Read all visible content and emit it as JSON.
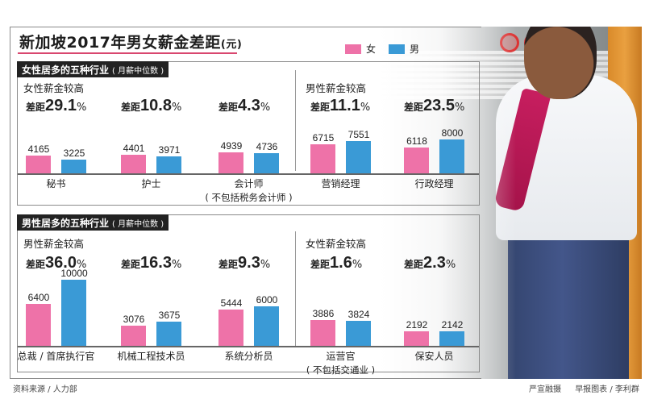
{
  "title": "新加坡2017年男女薪金差距",
  "title_unit": "(元)",
  "legend": [
    {
      "label": "女",
      "color": "#ee72a8"
    },
    {
      "label": "男",
      "color": "#3a9ad6"
    }
  ],
  "sections": [
    {
      "header": "女性居多的五种行业",
      "header_sub": "( 月薪中位数 )",
      "groups": [
        {
          "note": "女性薪金较高"
        },
        {
          "note": "男性薪金较高"
        }
      ],
      "items": [
        {
          "category": "秘书",
          "category_note": "",
          "gap_label": "差距",
          "gap": "29.1",
          "female": 4165,
          "male": 3225
        },
        {
          "category": "护士",
          "category_note": "",
          "gap_label": "差距",
          "gap": "10.8",
          "female": 4401,
          "male": 3971
        },
        {
          "category": "会计师",
          "category_note": "( 不包括税务会计师 )",
          "gap_label": "差距",
          "gap": "4.3",
          "female": 4939,
          "male": 4736
        },
        {
          "category": "营销经理",
          "category_note": "",
          "gap_label": "差距",
          "gap": "11.1",
          "female": 6715,
          "male": 7551
        },
        {
          "category": "行政经理",
          "category_note": "",
          "gap_label": "差距",
          "gap": "23.5",
          "female": 6118,
          "male": 8000
        }
      ]
    },
    {
      "header": "男性居多的五种行业",
      "header_sub": "( 月薪中位数 )",
      "groups": [
        {
          "note": "男性薪金较高"
        },
        {
          "note": "女性薪金较高"
        }
      ],
      "items": [
        {
          "category": "总裁 / 首席执行官",
          "category_note": "",
          "gap_label": "差距",
          "gap": "36.0",
          "female": 6400,
          "male": 10000
        },
        {
          "category": "机械工程技术员",
          "category_note": "",
          "gap_label": "差距",
          "gap": "16.3",
          "female": 3076,
          "male": 3675
        },
        {
          "category": "系统分析员",
          "category_note": "",
          "gap_label": "差距",
          "gap": "9.3",
          "female": 5444,
          "male": 6000
        },
        {
          "category": "运营官",
          "category_note": "( 不包括交通业 )",
          "gap_label": "差距",
          "gap": "1.6",
          "female": 3886,
          "male": 3824
        },
        {
          "category": "保安人员",
          "category_note": "",
          "gap_label": "差距",
          "gap": "2.3",
          "female": 2192,
          "male": 2142
        }
      ]
    }
  ],
  "percent_sign": "%",
  "footer": {
    "source": "资料来源 / 人力部",
    "photo_credit": "严宣融摄",
    "graphic_credit": "早报图表 / 李利群"
  },
  "chart_data": [
    {
      "type": "bar",
      "title": "新加坡2017年男女薪金差距(元) — 女性居多的五种行业(月薪中位数)",
      "categories": [
        "秘书",
        "护士",
        "会计师(不包括税务会计师)",
        "营销经理",
        "行政经理"
      ],
      "series": [
        {
          "name": "女",
          "values": [
            4165,
            4401,
            4939,
            6715,
            6118
          ]
        },
        {
          "name": "男",
          "values": [
            3225,
            3971,
            4736,
            7551,
            8000
          ]
        }
      ],
      "annotations": [
        "差距29.1%",
        "差距10.8%",
        "差距4.3%",
        "差距11.1%",
        "差距23.5%"
      ],
      "groups": [
        {
          "label": "女性薪金较高",
          "categories": [
            "秘书",
            "护士",
            "会计师"
          ]
        },
        {
          "label": "男性薪金较高",
          "categories": [
            "营销经理",
            "行政经理"
          ]
        }
      ],
      "xlabel": "",
      "ylabel": "元",
      "grid": false,
      "legend_position": "top-right"
    },
    {
      "type": "bar",
      "title": "新加坡2017年男女薪金差距(元) — 男性居多的五种行业(月薪中位数)",
      "categories": [
        "总裁/首席执行官",
        "机械工程技术员",
        "系统分析员",
        "运营官(不包括交通业)",
        "保安人员"
      ],
      "series": [
        {
          "name": "女",
          "values": [
            6400,
            3076,
            5444,
            3886,
            2192
          ]
        },
        {
          "name": "男",
          "values": [
            10000,
            3675,
            6000,
            3824,
            2142
          ]
        }
      ],
      "annotations": [
        "差距36.0%",
        "差距16.3%",
        "差距9.3%",
        "差距1.6%",
        "差距2.3%"
      ],
      "groups": [
        {
          "label": "男性薪金较高",
          "categories": [
            "总裁/首席执行官",
            "机械工程技术员",
            "系统分析员"
          ]
        },
        {
          "label": "女性薪金较高",
          "categories": [
            "运营官",
            "保安人员"
          ]
        }
      ],
      "xlabel": "",
      "ylabel": "元",
      "grid": false,
      "legend_position": "top-right"
    }
  ]
}
